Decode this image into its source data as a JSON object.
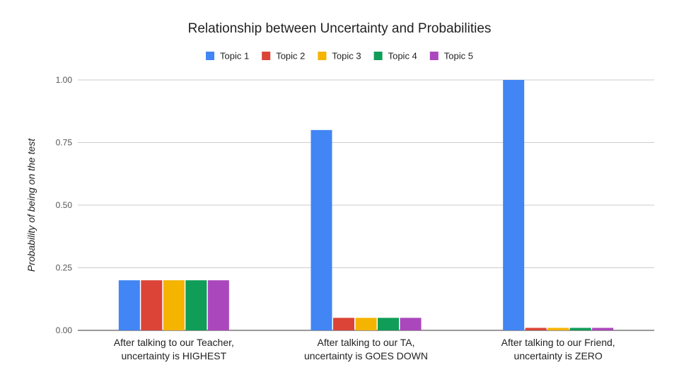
{
  "chart_data": {
    "type": "bar",
    "title": "Relationship between Uncertainty and Probabilities",
    "ylabel": "Probability of being on the test",
    "xlabel": "",
    "categories": [
      [
        "After talking to our Teacher,",
        "uncertainty is HIGHEST"
      ],
      [
        "After talking to our TA,",
        "uncertainty is GOES DOWN"
      ],
      [
        "After talking to our Friend,",
        "uncertainty is ZERO"
      ]
    ],
    "series": [
      {
        "name": "Topic 1",
        "color": "#4285f4",
        "values": [
          0.2,
          0.8,
          1.0
        ]
      },
      {
        "name": "Topic 2",
        "color": "#db4437",
        "values": [
          0.2,
          0.05,
          0.01
        ]
      },
      {
        "name": "Topic 3",
        "color": "#f4b400",
        "values": [
          0.2,
          0.05,
          0.01
        ]
      },
      {
        "name": "Topic 4",
        "color": "#0f9d58",
        "values": [
          0.2,
          0.05,
          0.01
        ]
      },
      {
        "name": "Topic 5",
        "color": "#ab47bc",
        "values": [
          0.2,
          0.05,
          0.01
        ]
      }
    ],
    "ylim": [
      0,
      1
    ],
    "yticks": [
      "0.00",
      "0.25",
      "0.50",
      "0.75",
      "1.00"
    ],
    "grid": true,
    "legend_position": "top"
  },
  "page": {
    "background_color": "#ffffff"
  }
}
